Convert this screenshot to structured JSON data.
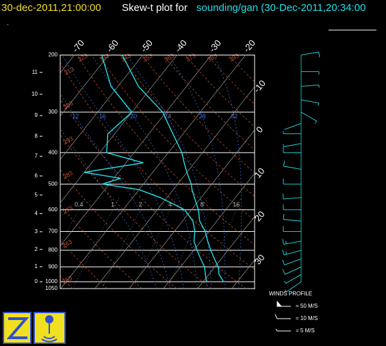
{
  "header": {
    "date": "30-dec-2011,21:00:00",
    "title": "Skew-t plot for",
    "source": "sounding/gan (30-Dec-2011,20:34:00"
  },
  "chart_data": {
    "type": "skewt",
    "pressure_ticks": [
      200,
      300,
      400,
      500,
      600,
      700,
      800,
      900,
      1000,
      1050
    ],
    "height_ticks": [
      0,
      1,
      2,
      3,
      4,
      5,
      6,
      7,
      8,
      9,
      10,
      11
    ],
    "isotherms": [
      -70,
      -60,
      -50,
      -40,
      -30,
      -20,
      -10,
      0,
      10,
      20,
      30
    ],
    "dry_adiabats": [
      253,
      263,
      273,
      283,
      293,
      303,
      313,
      323,
      333,
      343,
      353,
      363,
      373,
      383,
      393
    ],
    "moist_adiabats": [
      8,
      12,
      16,
      20,
      24,
      28,
      32
    ],
    "mixing_ratios": [
      0.4,
      1,
      2,
      4,
      8,
      16
    ],
    "pressure": [
      200,
      250,
      300,
      350,
      400,
      430,
      460,
      480,
      500,
      520,
      550,
      600,
      650,
      700,
      750,
      800,
      850,
      900,
      950,
      1000
    ],
    "temperature": [
      -56,
      -44,
      -31,
      -23,
      -16,
      -13,
      -10,
      -8,
      -6,
      -4.5,
      -2,
      2,
      5,
      9,
      12,
      15,
      18,
      21,
      23,
      26
    ],
    "dewpoint": [
      -62,
      -52,
      -40,
      -42,
      -38,
      -25,
      -40,
      -28,
      -32,
      -20,
      -12,
      -2,
      3,
      6,
      8,
      11,
      14,
      17,
      19,
      21
    ],
    "temperature_color": "#22e0e8",
    "dewpoint_color": "#22e0e8",
    "wind_pressure": [
      200,
      225,
      250,
      275,
      300,
      325,
      350,
      375,
      400,
      450,
      500,
      550,
      600,
      650,
      700,
      750,
      800,
      850,
      900,
      950,
      1000
    ],
    "wind_direction": [
      80,
      90,
      85,
      100,
      120,
      250,
      270,
      260,
      270,
      280,
      270,
      265,
      270,
      275,
      270,
      260,
      255,
      250,
      245,
      240,
      235
    ],
    "wind_speed": [
      10,
      8,
      9,
      6,
      5,
      4,
      6,
      8,
      10,
      12,
      12,
      10,
      10,
      12,
      14,
      15,
      15,
      12,
      10,
      8,
      6
    ],
    "wind_color": "#22e0e8",
    "legend": {
      "title": "WINDS PROFILE",
      "pennant": "= 50 M/S",
      "full": "= 10 M/S",
      "half": "= 5 M/S"
    }
  }
}
